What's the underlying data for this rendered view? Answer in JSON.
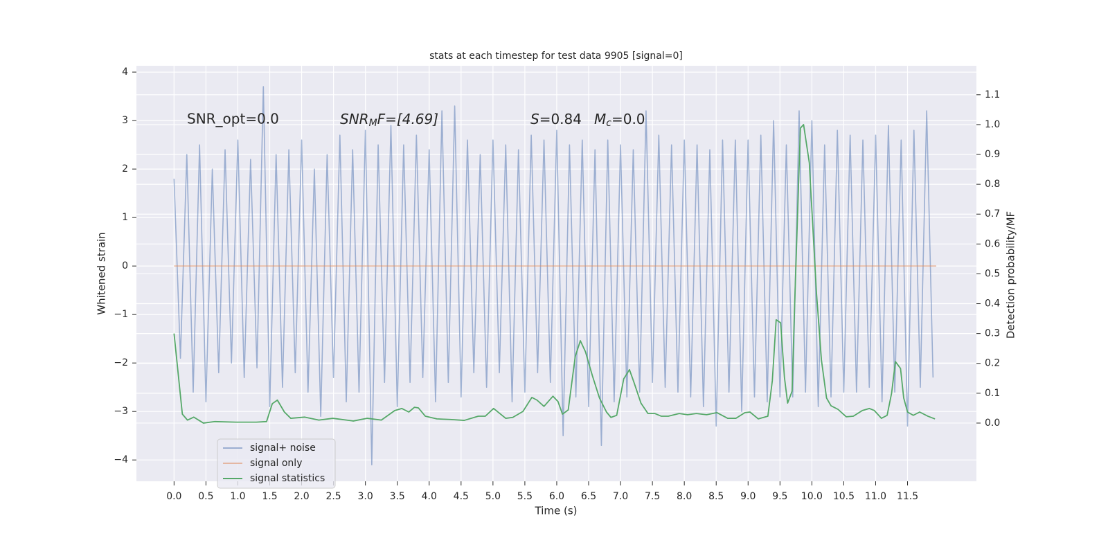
{
  "chart_data": {
    "type": "line",
    "title": "stats at each timestep for test data 9905 [signal=0]",
    "x_label": "Time (s)",
    "y_label": "Whitened strain",
    "y2_label": "Detection probability/MF",
    "annotations": [
      "SNR_opt=0.0",
      [
        "SNR",
        "M",
        "F=[4.69]"
      ],
      [
        "S",
        "=0.84"
      ],
      [
        "M",
        "c",
        "=0.0"
      ]
    ],
    "xlim": [
      -0.59,
      12.58
    ],
    "ylim": [
      -4.44,
      4.13
    ],
    "y2lim": [
      -0.195,
      1.197
    ],
    "xticks": [
      {
        "value": 0,
        "label": "0.0"
      },
      {
        "value": 0.5,
        "label": "0.5"
      },
      {
        "value": 1,
        "label": "1.0"
      },
      {
        "value": 1.5,
        "label": "1.5"
      },
      {
        "value": 2,
        "label": "2.0"
      },
      {
        "value": 2.5,
        "label": "2.5"
      },
      {
        "value": 3,
        "label": "3.0"
      },
      {
        "value": 3.5,
        "label": "3.5"
      },
      {
        "value": 4,
        "label": "4.0"
      },
      {
        "value": 4.5,
        "label": "4.5"
      },
      {
        "value": 5,
        "label": "5.0"
      },
      {
        "value": 5.5,
        "label": "5.5"
      },
      {
        "value": 6,
        "label": "6.0"
      },
      {
        "value": 6.5,
        "label": "6.5"
      },
      {
        "value": 7,
        "label": "7.0"
      },
      {
        "value": 7.5,
        "label": "7.5"
      },
      {
        "value": 8,
        "label": "8.0"
      },
      {
        "value": 8.5,
        "label": "8.5"
      },
      {
        "value": 9,
        "label": "9.0"
      },
      {
        "value": 9.5,
        "label": "9.5"
      },
      {
        "value": 10,
        "label": "10.0"
      },
      {
        "value": 10.5,
        "label": "10.5"
      },
      {
        "value": 11,
        "label": "11.0"
      },
      {
        "value": 11.5,
        "label": "11.5"
      }
    ],
    "yticks": [
      {
        "value": -4,
        "label": "−4"
      },
      {
        "value": -3,
        "label": "−3"
      },
      {
        "value": -2,
        "label": "−2"
      },
      {
        "value": -1,
        "label": "−1"
      },
      0,
      1,
      2,
      3,
      4
    ],
    "y2ticks": [
      {
        "value": 0,
        "label": "0.0"
      },
      {
        "value": 0.1,
        "label": "0.1"
      },
      {
        "value": 0.2,
        "label": "0.2"
      },
      {
        "value": 0.3,
        "label": "0.3"
      },
      {
        "value": 0.4,
        "label": "0.4"
      },
      {
        "value": 0.5,
        "label": "0.5"
      },
      {
        "value": 0.6,
        "label": "0.6"
      },
      {
        "value": 0.7,
        "label": "0.7"
      },
      {
        "value": 0.8,
        "label": "0.8"
      },
      {
        "value": 0.9,
        "label": "0.9"
      },
      {
        "value": 1,
        "label": "1.0"
      },
      {
        "value": 1.1,
        "label": "1.1"
      }
    ],
    "grid": true,
    "legend": "lower left",
    "background": "#eaeaf2",
    "series": [
      {
        "name": "signal+ noise",
        "color": "#4c72b0",
        "alpha": 0.5,
        "x": [
          0,
          0.1,
          0.2,
          0.3,
          0.4,
          0.5,
          0.6,
          0.7,
          0.8,
          0.9,
          1,
          1.1,
          1.2,
          1.3,
          1.4,
          1.5,
          1.6,
          1.7,
          1.8,
          1.9,
          2,
          2.1,
          2.2,
          2.3,
          2.4,
          2.5,
          2.6,
          2.7,
          2.8,
          2.9,
          3,
          3.1,
          3.2,
          3.3,
          3.4,
          3.5,
          3.6,
          3.7,
          3.8,
          3.9,
          4,
          4.1,
          4.2,
          4.3,
          4.4,
          4.5,
          4.6,
          4.7,
          4.8,
          4.9,
          5,
          5.1,
          5.2,
          5.3,
          5.4,
          5.5,
          5.6,
          5.7,
          5.8,
          5.9,
          6,
          6.1,
          6.2,
          6.3,
          6.4,
          6.5,
          6.6,
          6.7,
          6.8,
          6.9,
          7,
          7.1,
          7.2,
          7.3,
          7.4,
          7.5,
          7.6,
          7.7,
          7.8,
          7.9,
          8,
          8.1,
          8.2,
          8.3,
          8.4,
          8.5,
          8.6,
          8.7,
          8.8,
          8.9,
          9,
          9.1,
          9.2,
          9.3,
          9.4,
          9.5,
          9.6,
          9.7,
          9.8,
          9.9,
          10,
          10.1,
          10.2,
          10.3,
          10.4,
          10.5,
          10.6,
          10.7,
          10.8,
          10.9,
          11,
          11.1,
          11.2,
          11.3,
          11.4,
          11.5,
          11.6,
          11.7,
          11.8,
          11.9
        ],
        "values": [
          1.8,
          -1.9,
          2.3,
          -2.6,
          2.5,
          -2.8,
          2.0,
          -2.2,
          2.4,
          -2.0,
          2.6,
          -2.3,
          2.2,
          -2.1,
          3.7,
          -2.9,
          2.3,
          -2.5,
          2.4,
          -2.2,
          2.6,
          -2.6,
          2.0,
          -3.1,
          2.3,
          -2.3,
          2.7,
          -2.8,
          2.4,
          -2.6,
          2.8,
          -4.1,
          2.5,
          -2.4,
          2.9,
          -2.9,
          2.5,
          -2.4,
          2.7,
          -2.3,
          2.4,
          -2.8,
          3.2,
          -2.4,
          3.3,
          -2.7,
          2.6,
          -2.2,
          2.3,
          -2.5,
          2.6,
          -2.2,
          2.5,
          -2.8,
          2.4,
          -2.6,
          2.7,
          -2.2,
          2.6,
          -2.4,
          2.8,
          -3.5,
          2.5,
          -2.7,
          2.6,
          -2.9,
          2.4,
          -3.7,
          2.6,
          -2.8,
          2.5,
          -2.7,
          2.4,
          -2.6,
          3.2,
          -2.4,
          2.7,
          -2.5,
          2.5,
          -2.6,
          2.6,
          -2.7,
          2.5,
          -2.9,
          2.4,
          -3.3,
          2.6,
          -2.6,
          2.6,
          -3.0,
          2.6,
          -2.7,
          2.7,
          -2.8,
          3.0,
          -2.7,
          2.5,
          -2.7,
          3.2,
          -2.6,
          3.0,
          -2.9,
          2.5,
          -2.7,
          2.8,
          -2.6,
          2.7,
          -2.6,
          2.6,
          -2.5,
          2.7,
          -2.8,
          2.9,
          -2.6,
          2.6,
          -3.3,
          2.8,
          -2.5,
          3.2,
          -2.3
        ]
      },
      {
        "name": "signal only",
        "color": "#dd8452",
        "alpha": 0.5,
        "x": [
          0,
          11.95
        ],
        "values": [
          0,
          0
        ]
      },
      {
        "name": "signal statistics",
        "color": "#55a868",
        "alpha": 1,
        "axis": "y2",
        "x": [
          0,
          0.13,
          0.21,
          0.31,
          0.46,
          0.64,
          0.97,
          1.29,
          1.45,
          1.54,
          1.62,
          1.73,
          1.83,
          2.05,
          2.27,
          2.49,
          2.81,
          3.03,
          3.25,
          3.46,
          3.57,
          3.68,
          3.77,
          3.83,
          3.94,
          4.12,
          4.33,
          4.55,
          4.77,
          4.88,
          5.01,
          5.09,
          5.2,
          5.31,
          5.47,
          5.61,
          5.69,
          5.8,
          5.94,
          6.02,
          6.09,
          6.18,
          6.29,
          6.37,
          6.45,
          6.56,
          6.67,
          6.78,
          6.85,
          6.94,
          7.05,
          7.14,
          7.21,
          7.32,
          7.43,
          7.54,
          7.64,
          7.75,
          7.92,
          8.05,
          8.19,
          8.35,
          8.51,
          8.68,
          8.81,
          8.95,
          9.03,
          9.16,
          9.31,
          9.38,
          9.44,
          9.51,
          9.57,
          9.62,
          9.69,
          9.73,
          9.82,
          9.87,
          9.96,
          10.07,
          10.15,
          10.23,
          10.3,
          10.41,
          10.54,
          10.65,
          10.79,
          10.9,
          10.98,
          11.09,
          11.18,
          11.25,
          11.31,
          11.39,
          11.44,
          11.5,
          11.59,
          11.69,
          11.82,
          11.93
        ],
        "values": [
          0.3,
          0.03,
          0.01,
          0.02,
          0.0,
          0.005,
          0.003,
          0.003,
          0.005,
          0.065,
          0.077,
          0.037,
          0.016,
          0.02,
          0.01,
          0.016,
          0.007,
          0.016,
          0.01,
          0.042,
          0.049,
          0.037,
          0.053,
          0.051,
          0.023,
          0.014,
          0.012,
          0.009,
          0.023,
          0.023,
          0.049,
          0.035,
          0.016,
          0.019,
          0.039,
          0.086,
          0.077,
          0.056,
          0.09,
          0.072,
          0.03,
          0.044,
          0.223,
          0.276,
          0.239,
          0.158,
          0.084,
          0.037,
          0.019,
          0.026,
          0.148,
          0.179,
          0.137,
          0.067,
          0.032,
          0.032,
          0.023,
          0.023,
          0.032,
          0.028,
          0.032,
          0.028,
          0.035,
          0.016,
          0.016,
          0.035,
          0.037,
          0.014,
          0.023,
          0.142,
          0.346,
          0.336,
          0.153,
          0.067,
          0.107,
          0.397,
          0.988,
          1.0,
          0.872,
          0.443,
          0.211,
          0.084,
          0.058,
          0.046,
          0.021,
          0.023,
          0.042,
          0.049,
          0.042,
          0.016,
          0.026,
          0.1,
          0.206,
          0.183,
          0.084,
          0.037,
          0.026,
          0.037,
          0.023,
          0.014
        ]
      }
    ]
  }
}
